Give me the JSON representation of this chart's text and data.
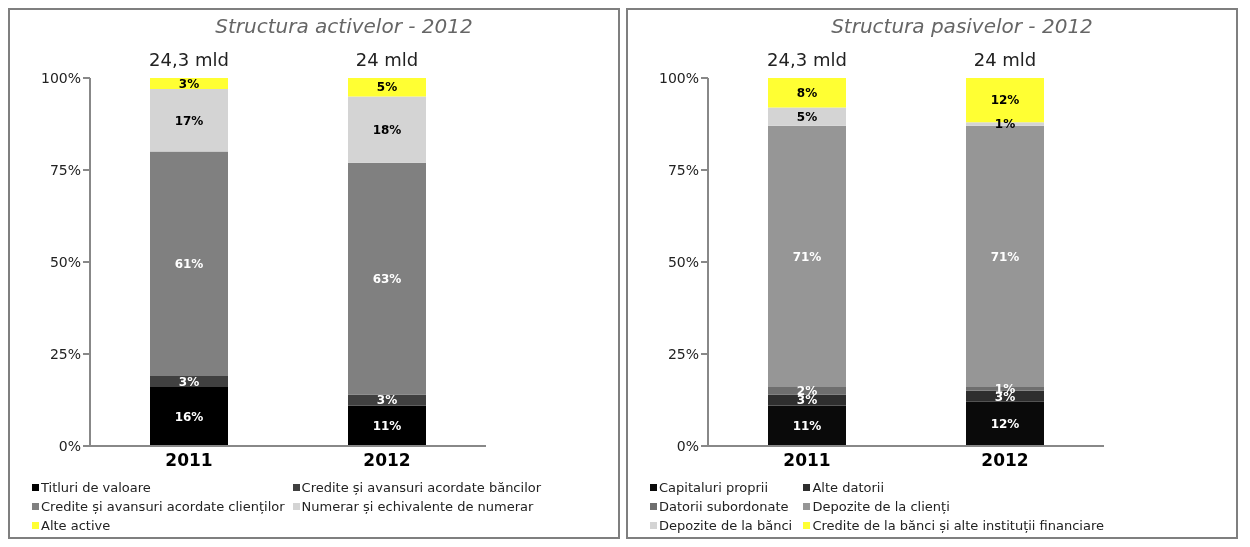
{
  "chart_data": [
    {
      "type": "bar",
      "title": "Structura activelor - 2012",
      "categories": [
        "2011",
        "2012"
      ],
      "stacked": true,
      "legend": "bottom",
      "grid": false,
      "ylim": [
        0,
        100
      ],
      "yticks": [
        {
          "value": 0,
          "label": "0%"
        },
        {
          "value": 25,
          "label": "25%"
        },
        {
          "value": 50,
          "label": "50%"
        },
        {
          "value": 75,
          "label": "75%"
        },
        {
          "value": 100,
          "label": "100%"
        }
      ],
      "annotations": [
        {
          "text": "24,3 mld",
          "x": "2011",
          "y": 100
        },
        {
          "text": "24 mld",
          "x": "2012",
          "y": 100
        }
      ],
      "series": [
        {
          "name": "Titluri de valoare",
          "color": "#000000",
          "values": [
            16,
            11
          ],
          "value_labels": [
            "16%",
            "11%"
          ]
        },
        {
          "name": "Credite și avansuri acordate băncilor",
          "color": "#404040",
          "values": [
            3,
            3
          ],
          "value_labels": [
            "3%",
            "3%"
          ]
        },
        {
          "name": "Credite și avansuri acordate clienților",
          "color": "#808080",
          "values": [
            61,
            63
          ],
          "value_labels": [
            "61%",
            "63%"
          ]
        },
        {
          "name": "Numerar și echivalente de numerar",
          "color": "#d4d4d4",
          "values": [
            17,
            18
          ],
          "value_labels": [
            "17%",
            "18%"
          ]
        },
        {
          "name": "Alte active",
          "color": "#ffff33",
          "values": [
            3,
            5
          ],
          "value_labels": [
            "3%",
            "5%"
          ]
        }
      ]
    },
    {
      "type": "bar",
      "title": "Structura pasivelor - 2012",
      "categories": [
        "2011",
        "2012"
      ],
      "stacked": true,
      "legend": "bottom",
      "grid": false,
      "ylim": [
        0,
        100
      ],
      "yticks": [
        {
          "value": 0,
          "label": "0%"
        },
        {
          "value": 25,
          "label": "25%"
        },
        {
          "value": 50,
          "label": "50%"
        },
        {
          "value": 75,
          "label": "75%"
        },
        {
          "value": 100,
          "label": "100%"
        }
      ],
      "annotations": [
        {
          "text": "24,3 mld",
          "x": "2011",
          "y": 100
        },
        {
          "text": "24 mld",
          "x": "2012",
          "y": 100
        }
      ],
      "series": [
        {
          "name": "Capitaluri proprii",
          "color": "#0a0a0a",
          "values": [
            11,
            12
          ],
          "value_labels": [
            "11%",
            "12%"
          ]
        },
        {
          "name": "Alte datorii",
          "color": "#2e2e2e",
          "values": [
            3,
            3
          ],
          "value_labels": [
            "3%",
            "3%"
          ]
        },
        {
          "name": "Datorii subordonate",
          "color": "#6e6e6e",
          "values": [
            2,
            1
          ],
          "value_labels": [
            "2%",
            "1%"
          ]
        },
        {
          "name": "Depozite de la clienți",
          "color": "#969696",
          "values": [
            71,
            71
          ],
          "value_labels": [
            "71%",
            "71%"
          ]
        },
        {
          "name": "Depozite de la bănci",
          "color": "#d4d4d4",
          "values": [
            5,
            1
          ],
          "value_labels": [
            "5%",
            "1%"
          ]
        },
        {
          "name": "Credite de la bănci și alte instituții financiare",
          "color": "#ffff33",
          "values": [
            8,
            12
          ],
          "value_labels": [
            "8%",
            "12%"
          ]
        }
      ]
    }
  ]
}
